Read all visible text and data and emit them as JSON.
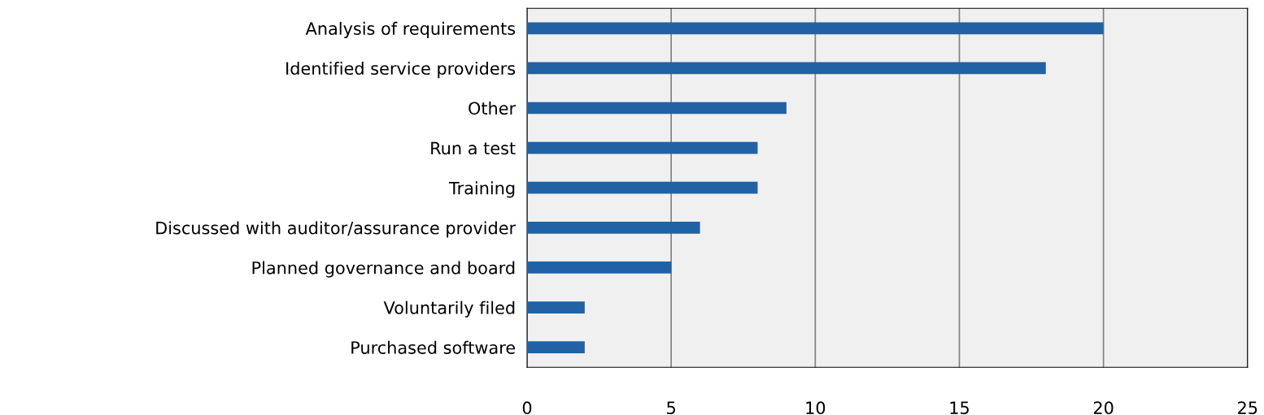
{
  "chart_data": {
    "type": "bar",
    "orientation": "horizontal",
    "categories": [
      "Analysis of requirements",
      "Identified service providers",
      "Other",
      "Run a test",
      "Training",
      "Discussed with auditor/assurance provider",
      "Planned governance and board",
      "Voluntarily filed",
      "Purchased software"
    ],
    "values": [
      20,
      18,
      9,
      8,
      8,
      6,
      5,
      2,
      2
    ],
    "color": "#2062a4",
    "xlim": [
      0,
      25
    ],
    "xticks": [
      0,
      5,
      10,
      15,
      20,
      25
    ],
    "grid": "x"
  }
}
